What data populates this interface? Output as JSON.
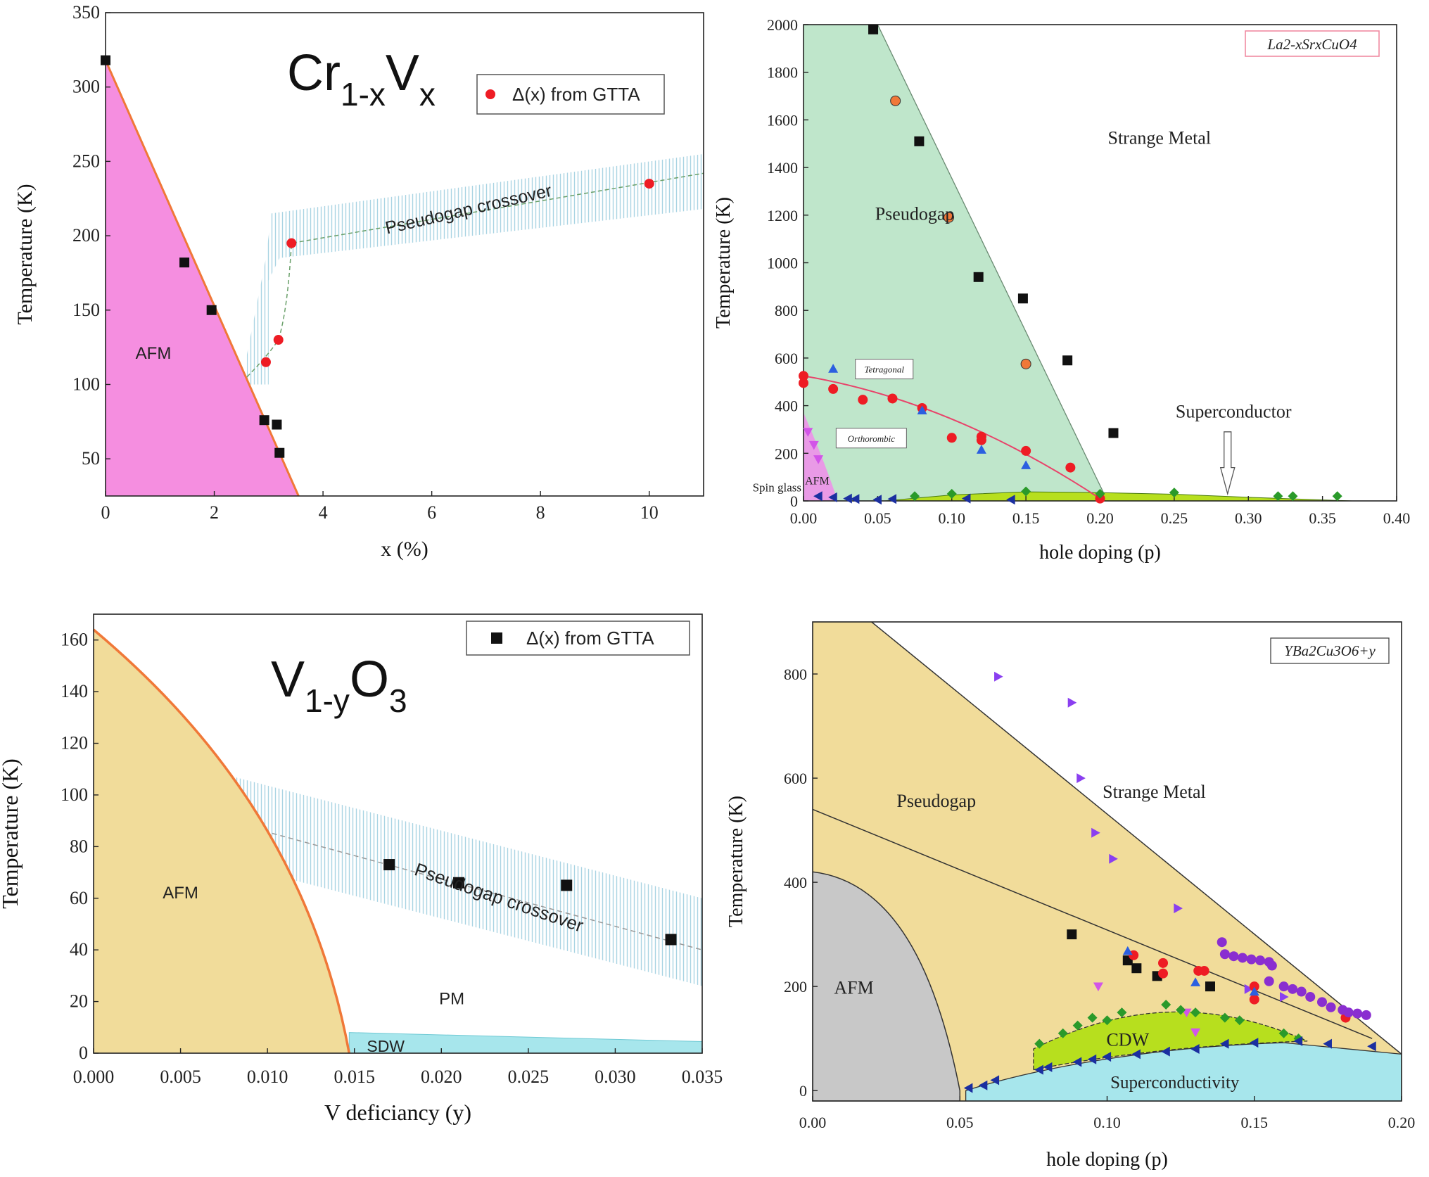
{
  "chart_data": [
    {
      "panel": "top-left",
      "type": "scatter",
      "title": "Cr1-xVx",
      "title_main": "Cr",
      "title_sub1": "1-x",
      "title_mid": "V",
      "title_sub2": "x",
      "xlabel": "x (%)",
      "ylabel": "Temperature (K)",
      "xlim": [
        0,
        11
      ],
      "ylim": [
        25,
        350
      ],
      "xticks": [
        0,
        2,
        4,
        6,
        8,
        10
      ],
      "yticks": [
        50,
        100,
        150,
        200,
        250,
        300,
        350
      ],
      "legend": "Δ(x) from GTTA",
      "legend_position": "top-right",
      "region_labels": {
        "afm": "AFM",
        "crossover": "Pseudogap crossover"
      },
      "afm_boundary": [
        [
          0,
          318
        ],
        [
          3.55,
          25
        ]
      ],
      "series": [
        {
          "name": "black squares",
          "marker": "square",
          "color": "#111111",
          "points": [
            [
              0,
              318
            ],
            [
              1.45,
              182
            ],
            [
              1.95,
              150
            ],
            [
              2.92,
              76
            ],
            [
              3.15,
              73
            ],
            [
              3.2,
              54
            ]
          ]
        },
        {
          "name": "Δ(x) from GTTA",
          "marker": "circle",
          "color": "#ee1c24",
          "points": [
            [
              2.95,
              115
            ],
            [
              3.18,
              130
            ],
            [
              3.42,
              195
            ],
            [
              10,
              235
            ]
          ]
        }
      ],
      "colors": {
        "afm": "#f58ee0",
        "boundary": "#f07838",
        "hatch": "#b9dce8"
      }
    },
    {
      "panel": "top-right",
      "type": "scatter",
      "title": "La2-xSrxCuO4",
      "xlabel": "hole doping (p)",
      "ylabel": "Temperature (K)",
      "xlim": [
        0,
        0.4
      ],
      "ylim": [
        0,
        2000
      ],
      "xticks": [
        0.0,
        0.05,
        0.1,
        0.15,
        0.2,
        0.25,
        0.3,
        0.35,
        0.4
      ],
      "xtick_labels": [
        "0.00",
        "0.05",
        "0.10",
        "0.15",
        "0.20",
        "0.25",
        "0.30",
        "0.35",
        "0.40"
      ],
      "yticks": [
        0,
        200,
        400,
        600,
        800,
        1000,
        1200,
        1400,
        1600,
        1800,
        2000
      ],
      "region_labels": {
        "strange_metal": "Strange Metal",
        "pseudogap": "Pseudogap",
        "superconductor": "Superconductor",
        "tetragonal": "Tetragonal",
        "orthorhombic": "Orthorombic",
        "afm": "AFM",
        "spin_glass": "Spin glass"
      },
      "series": [
        {
          "name": "black squares",
          "marker": "square",
          "color": "#111111",
          "points": [
            [
              0.047,
              1980
            ],
            [
              0.078,
              1510
            ],
            [
              0.118,
              940
            ],
            [
              0.148,
              850
            ],
            [
              0.178,
              590
            ],
            [
              0.209,
              285
            ]
          ]
        },
        {
          "name": "orange circles",
          "marker": "circle",
          "color": "#f07838",
          "points": [
            [
              0.062,
              1680
            ],
            [
              0.098,
              1190
            ],
            [
              0.15,
              575
            ]
          ]
        },
        {
          "name": "red circles",
          "marker": "circle",
          "color": "#ee1c24",
          "points": [
            [
              0,
              525
            ],
            [
              0,
              495
            ],
            [
              0.02,
              470
            ],
            [
              0.04,
              425
            ],
            [
              0.06,
              430
            ],
            [
              0.08,
              390
            ],
            [
              0.1,
              265
            ],
            [
              0.12,
              270
            ],
            [
              0.12,
              255
            ],
            [
              0.15,
              210
            ],
            [
              0.18,
              140
            ],
            [
              0.2,
              10
            ]
          ]
        },
        {
          "name": "blue triangles",
          "marker": "triangle-up",
          "color": "#2b5fe0",
          "points": [
            [
              0.02,
              555
            ],
            [
              0.08,
              380
            ],
            [
              0.12,
              215
            ],
            [
              0.15,
              150
            ]
          ]
        },
        {
          "name": "magenta triangles",
          "marker": "triangle-down",
          "color": "#d255e8",
          "points": [
            [
              0.003,
              290
            ],
            [
              0.007,
              235
            ],
            [
              0.01,
              175
            ]
          ]
        },
        {
          "name": "navy triangles",
          "marker": "triangle-left",
          "color": "#1b2fa0",
          "points": [
            [
              0.01,
              20
            ],
            [
              0.02,
              15
            ],
            [
              0.03,
              10
            ],
            [
              0.035,
              8
            ],
            [
              0.05,
              5
            ],
            [
              0.06,
              8
            ],
            [
              0.11,
              10
            ],
            [
              0.14,
              5
            ]
          ]
        },
        {
          "name": "green diamonds",
          "marker": "diamond",
          "color": "#2a9a2a",
          "points": [
            [
              0.075,
              20
            ],
            [
              0.1,
              30
            ],
            [
              0.15,
              40
            ],
            [
              0.2,
              30
            ],
            [
              0.25,
              35
            ],
            [
              0.32,
              20
            ],
            [
              0.33,
              20
            ],
            [
              0.36,
              20
            ]
          ]
        }
      ],
      "tc_curve": [
        [
          0.055,
          0
        ],
        [
          0.1,
          25
        ],
        [
          0.15,
          38
        ],
        [
          0.2,
          35
        ],
        [
          0.25,
          28
        ],
        [
          0.3,
          15
        ],
        [
          0.37,
          0
        ]
      ],
      "colors": {
        "pseudogap": "#bfe6cb",
        "superconductor": "#b7df1e",
        "afm": "#e99ae6",
        "red_line": "#e8436a",
        "title_box": "#f08aa2"
      }
    },
    {
      "panel": "bottom-left",
      "type": "scatter",
      "title": "V1-yO3",
      "title_main": "V",
      "title_sub1": "1-y",
      "title_mid": "O",
      "title_sub2": "3",
      "xlabel": "V deficiancy (y)",
      "ylabel": "Temperature (K)",
      "xlim": [
        0,
        0.035
      ],
      "ylim": [
        0,
        170
      ],
      "xticks": [
        0,
        0.005,
        0.01,
        0.015,
        0.02,
        0.025,
        0.03,
        0.035
      ],
      "xtick_labels": [
        "0.000",
        "0.005",
        "0.010",
        "0.015",
        "0.020",
        "0.025",
        "0.030",
        "0.035"
      ],
      "yticks": [
        0,
        20,
        40,
        60,
        80,
        100,
        120,
        140,
        160
      ],
      "legend": "Δ(x) from GTTA",
      "legend_position": "top-right",
      "region_labels": {
        "afm": "AFM",
        "pm": "PM",
        "sdw": "SDW",
        "crossover": "Pseudogap crossover"
      },
      "series": [
        {
          "name": "Δ(x) from GTTA",
          "marker": "square",
          "color": "#111111",
          "points": [
            [
              0.017,
              73
            ],
            [
              0.021,
              66
            ],
            [
              0.0272,
              65
            ],
            [
              0.0332,
              44
            ]
          ]
        }
      ],
      "colors": {
        "afm": "#f1dc9a",
        "boundary": "#f07838",
        "sdw": "#a7e6ec",
        "hatch": "#b9dce8"
      }
    },
    {
      "panel": "bottom-right",
      "type": "scatter",
      "title": "YBa2Cu3O6+y",
      "xlabel": "hole doping (p)",
      "ylabel": "Temperature (K)",
      "xlim": [
        0,
        0.2
      ],
      "ylim": [
        -20,
        900
      ],
      "xticks": [
        0,
        0.05,
        0.1,
        0.15,
        0.2
      ],
      "xtick_labels": [
        "0.00",
        "0.05",
        "0.10",
        "0.15",
        "0.20"
      ],
      "yticks": [
        0,
        200,
        400,
        600,
        800
      ],
      "region_labels": {
        "pseudogap": "Pseudogap",
        "strange_metal": "Strange Metal",
        "afm": "AFM",
        "cdw": "CDW",
        "superconductivity": "Superconductivity"
      },
      "series": [
        {
          "name": "purple triangles",
          "marker": "triangle-right",
          "color": "#8a3ff0",
          "points": [
            [
              0.063,
              795
            ],
            [
              0.088,
              745
            ],
            [
              0.091,
              600
            ],
            [
              0.096,
              495
            ],
            [
              0.102,
              445
            ],
            [
              0.124,
              350
            ],
            [
              0.148,
              195
            ],
            [
              0.16,
              180
            ]
          ]
        },
        {
          "name": "black squares",
          "marker": "square",
          "color": "#111111",
          "points": [
            [
              0.088,
              300
            ],
            [
              0.107,
              250
            ],
            [
              0.11,
              235
            ],
            [
              0.117,
              220
            ],
            [
              0.135,
              200
            ]
          ]
        },
        {
          "name": "red circles",
          "marker": "circle",
          "color": "#ee1c24",
          "points": [
            [
              0.109,
              260
            ],
            [
              0.119,
              245
            ],
            [
              0.119,
              225
            ],
            [
              0.131,
              230
            ],
            [
              0.133,
              230
            ],
            [
              0.15,
              200
            ],
            [
              0.15,
              175
            ],
            [
              0.181,
              140
            ]
          ]
        },
        {
          "name": "purple circles",
          "marker": "circle",
          "color": "#8a2ed0",
          "points": [
            [
              0.139,
              285
            ],
            [
              0.14,
              262
            ],
            [
              0.143,
              258
            ],
            [
              0.146,
              255
            ],
            [
              0.149,
              252
            ],
            [
              0.152,
              250
            ],
            [
              0.155,
              247
            ],
            [
              0.156,
              240
            ],
            [
              0.155,
              210
            ],
            [
              0.16,
              200
            ],
            [
              0.163,
              195
            ],
            [
              0.166,
              190
            ],
            [
              0.169,
              180
            ],
            [
              0.173,
              170
            ],
            [
              0.176,
              160
            ],
            [
              0.18,
              155
            ],
            [
              0.182,
              150
            ],
            [
              0.185,
              148
            ],
            [
              0.188,
              145
            ]
          ]
        },
        {
          "name": "blue triangles",
          "marker": "triangle-up",
          "color": "#2b5fe0",
          "points": [
            [
              0.107,
              268
            ],
            [
              0.13,
              208
            ],
            [
              0.15,
              190
            ]
          ]
        },
        {
          "name": "magenta triangles",
          "marker": "triangle-down",
          "color": "#d255e8",
          "points": [
            [
              0.097,
              200
            ],
            [
              0.13,
              112
            ],
            [
              0.127,
              150
            ]
          ]
        },
        {
          "name": "green diamonds",
          "marker": "diamond",
          "color": "#2a9a2a",
          "points": [
            [
              0.077,
              90
            ],
            [
              0.085,
              110
            ],
            [
              0.09,
              125
            ],
            [
              0.095,
              140
            ],
            [
              0.1,
              135
            ],
            [
              0.105,
              150
            ],
            [
              0.12,
              165
            ],
            [
              0.125,
              155
            ],
            [
              0.13,
              150
            ],
            [
              0.14,
              140
            ],
            [
              0.145,
              135
            ],
            [
              0.16,
              110
            ],
            [
              0.165,
              100
            ]
          ]
        },
        {
          "name": "navy triangles",
          "marker": "triangle-left",
          "color": "#1b2fa0",
          "points": [
            [
              0.053,
              5
            ],
            [
              0.058,
              10
            ],
            [
              0.062,
              20
            ],
            [
              0.077,
              40
            ],
            [
              0.08,
              45
            ],
            [
              0.09,
              55
            ],
            [
              0.095,
              60
            ],
            [
              0.1,
              65
            ],
            [
              0.11,
              70
            ],
            [
              0.12,
              75
            ],
            [
              0.13,
              80
            ],
            [
              0.14,
              90
            ],
            [
              0.15,
              92
            ],
            [
              0.165,
              95
            ],
            [
              0.175,
              90
            ],
            [
              0.19,
              85
            ]
          ]
        }
      ],
      "colors": {
        "pseudogap": "#f1dc9a",
        "afm": "#c8c8c8",
        "cdw": "#b7df1e",
        "superconductivity": "#a7e6ec"
      }
    }
  ]
}
